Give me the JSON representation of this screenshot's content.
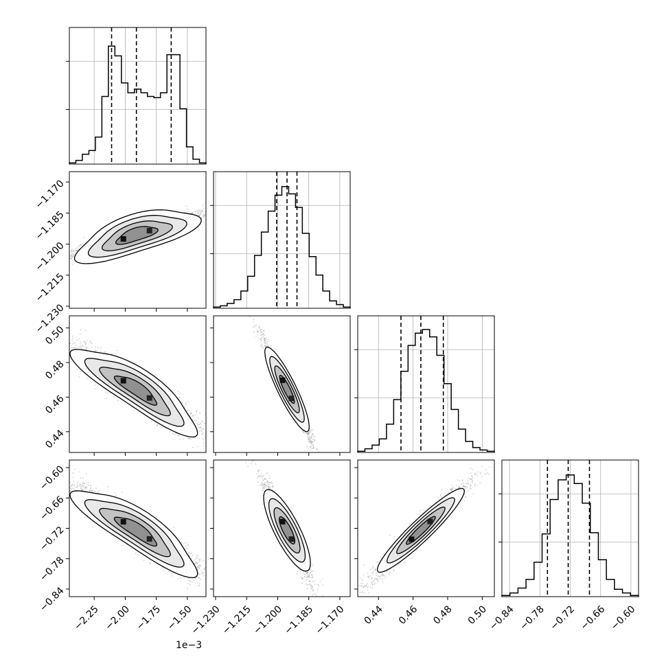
{
  "chart_data": {
    "type": "corner",
    "params": [
      {
        "range": [
          -2.45,
          -1.35
        ],
        "ticks": [
          -2.25,
          -2.0,
          -1.75,
          -1.5
        ],
        "tick_labels": [
          "−2.25",
          "−2.00",
          "−1.75",
          "−1.50"
        ],
        "offset_text": "1e−3",
        "quantiles": [
          -2.11,
          -1.91,
          -1.63
        ],
        "hist": [
          0.01,
          0.03,
          0.08,
          0.11,
          0.22,
          0.55,
          0.96,
          0.88,
          0.66,
          0.58,
          0.61,
          0.58,
          0.55,
          0.54,
          0.58,
          0.89,
          0.89,
          0.45,
          0.14,
          0.04,
          0.01
        ],
        "hist_max": 1.0
      },
      {
        "range": [
          -1.231,
          -1.165
        ],
        "ticks": [
          -1.23,
          -1.215,
          -1.2,
          -1.185,
          -1.17
        ],
        "tick_labels": [
          "−1.230",
          "−1.215",
          "−1.200",
          "−1.185",
          "−1.170"
        ],
        "quantiles": [
          -1.2005,
          -1.1955,
          -1.1907
        ],
        "hist": [
          0.01,
          0.02,
          0.04,
          0.07,
          0.14,
          0.26,
          0.43,
          0.62,
          0.79,
          0.92,
          0.99,
          0.93,
          0.82,
          0.61,
          0.42,
          0.27,
          0.14,
          0.06,
          0.03,
          0.01
        ],
        "hist_max": 1.0
      },
      {
        "range": [
          0.428,
          0.507
        ],
        "ticks": [
          0.44,
          0.46,
          0.48,
          0.5
        ],
        "tick_labels": [
          "0.44",
          "0.46",
          "0.48",
          "0.50"
        ],
        "quantiles": [
          0.453,
          0.4645,
          0.4775
        ],
        "hist": [
          0.01,
          0.03,
          0.06,
          0.11,
          0.23,
          0.43,
          0.66,
          0.87,
          0.97,
          1.0,
          0.94,
          0.79,
          0.56,
          0.35,
          0.19,
          0.09,
          0.04,
          0.02,
          0.01
        ],
        "hist_max": 1.0
      },
      {
        "range": [
          -0.855,
          -0.585
        ],
        "ticks": [
          -0.84,
          -0.78,
          -0.72,
          -0.66,
          -0.6
        ],
        "tick_labels": [
          "−0.84",
          "−0.78",
          "−0.72",
          "−0.66",
          "−0.60"
        ],
        "quantiles": [
          -0.765,
          -0.724,
          -0.682
        ],
        "hist": [
          0.01,
          0.03,
          0.07,
          0.14,
          0.28,
          0.51,
          0.79,
          0.95,
          0.99,
          0.92,
          0.76,
          0.52,
          0.3,
          0.14,
          0.06,
          0.03,
          0.01
        ],
        "hist_max": 1.0
      }
    ],
    "correlations": {
      "1-0": 0.93,
      "2-0": -0.93,
      "2-1": -0.98,
      "3-0": -0.93,
      "3-1": -0.95,
      "3-2": 0.97
    },
    "grid": true,
    "colors": {
      "line": "#000000",
      "grid": "#b0b0b0",
      "points": "#7f7f7f"
    }
  }
}
